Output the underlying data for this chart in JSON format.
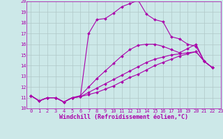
{
  "background_color": "#cce8e8",
  "grid_color": "#b0c8c8",
  "line_color": "#aa00aa",
  "title": "Windchill (Refroidissement éolien,°C)",
  "xlim": [
    -0.5,
    23
  ],
  "ylim": [
    10,
    20
  ],
  "yticks": [
    10,
    11,
    12,
    13,
    14,
    15,
    16,
    17,
    18,
    19,
    20
  ],
  "xticks": [
    0,
    1,
    2,
    3,
    4,
    5,
    6,
    7,
    8,
    9,
    10,
    11,
    12,
    13,
    14,
    15,
    16,
    17,
    18,
    19,
    20,
    21,
    22,
    23
  ],
  "series": [
    [
      11.2,
      10.7,
      11.0,
      11.0,
      10.6,
      11.0,
      11.1,
      17.0,
      18.3,
      18.4,
      18.9,
      19.5,
      19.8,
      20.1,
      18.8,
      18.3,
      18.1,
      16.7,
      16.5,
      16.0,
      15.8,
      14.4,
      13.8
    ],
    [
      11.2,
      10.7,
      11.0,
      11.0,
      10.6,
      11.0,
      11.1,
      11.3,
      11.5,
      11.8,
      12.1,
      12.5,
      12.9,
      13.2,
      13.6,
      14.0,
      14.3,
      14.6,
      14.9,
      15.1,
      15.3,
      14.4,
      13.8
    ],
    [
      11.2,
      10.7,
      11.0,
      11.0,
      10.6,
      11.0,
      11.1,
      11.5,
      11.9,
      12.3,
      12.7,
      13.1,
      13.5,
      13.9,
      14.3,
      14.6,
      14.8,
      15.0,
      15.1,
      15.2,
      15.3,
      14.4,
      13.8
    ],
    [
      11.2,
      10.7,
      11.0,
      11.0,
      10.6,
      11.0,
      11.2,
      12.0,
      12.8,
      13.5,
      14.2,
      14.9,
      15.5,
      15.9,
      16.0,
      16.0,
      15.8,
      15.5,
      15.2,
      15.6,
      16.0,
      14.4,
      13.8
    ]
  ],
  "marker_size": 2.0,
  "linewidth": 0.8,
  "tick_fontsize": 5.0,
  "xlabel_fontsize": 6.0
}
